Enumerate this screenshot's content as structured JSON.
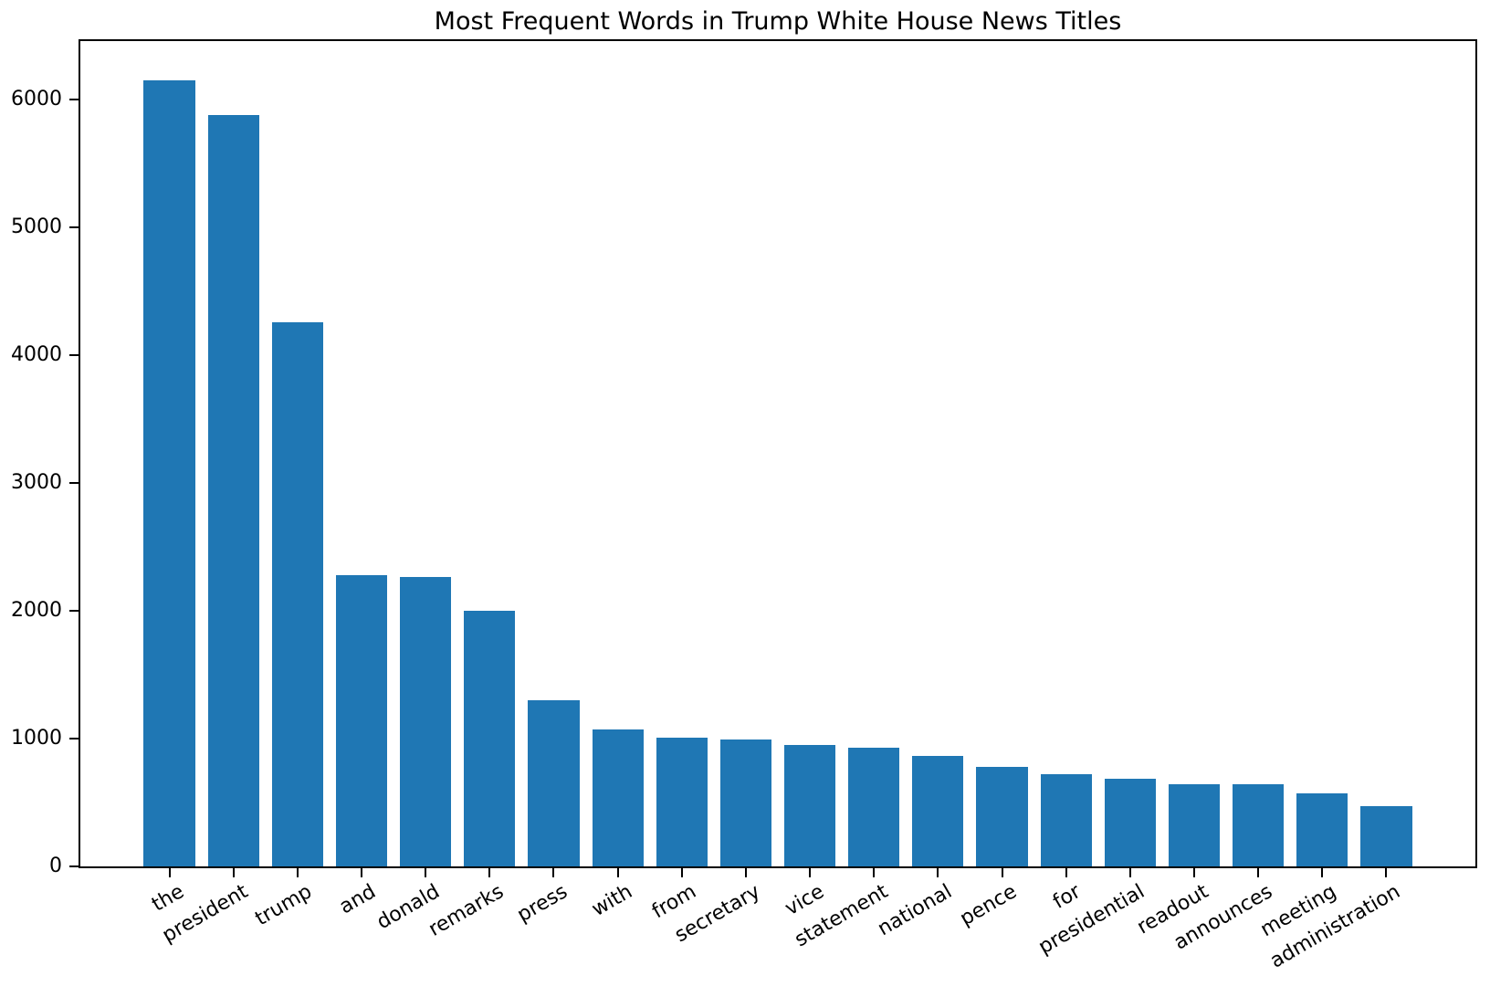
{
  "chart_data": {
    "type": "bar",
    "title": "Most Frequent Words in Trump White House News Titles",
    "categories": [
      "the",
      "president",
      "trump",
      "and",
      "donald",
      "remarks",
      "press",
      "with",
      "from",
      "secretary",
      "vice",
      "statement",
      "national",
      "pence",
      "for",
      "presidential",
      "readout",
      "announces",
      "meeting",
      "administration"
    ],
    "values": [
      6150,
      5880,
      4260,
      2280,
      2265,
      2000,
      1300,
      1075,
      1005,
      995,
      950,
      930,
      865,
      780,
      725,
      688,
      643,
      640,
      572,
      475
    ],
    "xlabel": "",
    "ylabel": "",
    "ylim": [
      0,
      6460
    ],
    "yticks": [
      0,
      1000,
      2000,
      3000,
      4000,
      5000,
      6000
    ],
    "xlim": [
      -1.39,
      20.39
    ],
    "bar_width_units": 0.8,
    "bar_color": "#1f77b4",
    "axis_color": "#000000",
    "grid": false,
    "legend": null,
    "x_tick_rotation_deg": 30
  }
}
